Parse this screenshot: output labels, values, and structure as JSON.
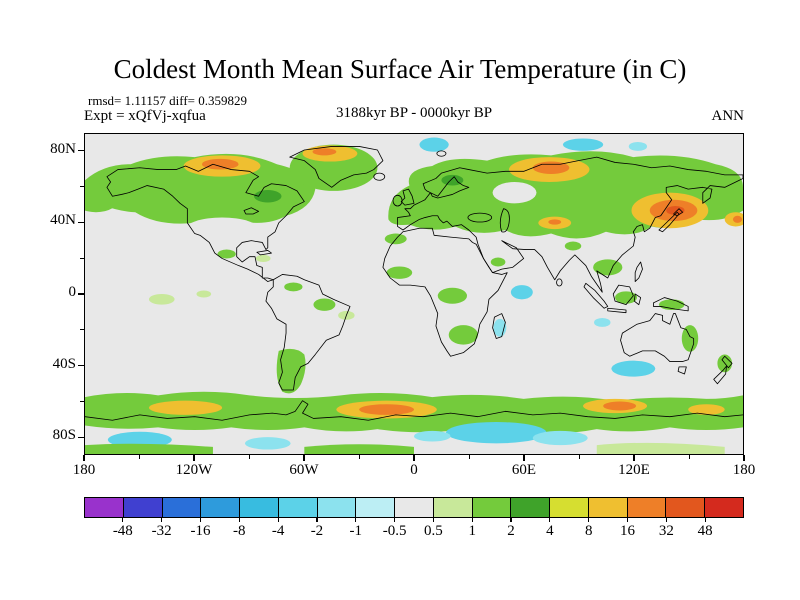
{
  "title": "Coldest Month Mean Surface Air Temperature (in C)",
  "header": {
    "rmsd": "rmsd= 1.11157 diff= 0.359829",
    "expt": "Expt = xQfVj-xqfua",
    "period": "3188kyr BP - 0000kyr BP",
    "season": "ANN"
  },
  "chart_data": {
    "type": "heatmap",
    "title": "Coldest Month Mean Surface Air Temperature (in C)",
    "units": "degrees C",
    "stats": {
      "rmsd": 1.11157,
      "diff": 0.359829
    },
    "experiment": "xQfVj-xqfua",
    "period": "3188kyr BP - 0000kyr BP",
    "season": "ANN",
    "projection": "equirectangular world map, lon -180..180, lat -90..90",
    "x_axis": {
      "ticks": [
        {
          "label": "180",
          "deg": -180
        },
        {
          "label": "120W",
          "deg": -120
        },
        {
          "label": "60W",
          "deg": -60
        },
        {
          "label": "0",
          "deg": 0
        },
        {
          "label": "60E",
          "deg": 60
        },
        {
          "label": "120E",
          "deg": 120
        },
        {
          "label": "180",
          "deg": 180
        }
      ]
    },
    "y_axis": {
      "ticks": [
        {
          "label": "80N",
          "deg": 80
        },
        {
          "label": "40N",
          "deg": 40
        },
        {
          "label": "0",
          "deg": 0
        },
        {
          "label": "40S",
          "deg": -40
        },
        {
          "label": "80S",
          "deg": -80
        }
      ]
    },
    "colorbar": {
      "levels": [
        -48,
        -32,
        -16,
        -8,
        -4,
        -2,
        -1,
        -0.5,
        0.5,
        1,
        2,
        4,
        8,
        16,
        32,
        48
      ],
      "boundary_labels": [
        "-48",
        "-32",
        "-16",
        "-8",
        "-4",
        "-2",
        "-1",
        "-0.5",
        "0.5",
        "1",
        "2",
        "4",
        "8",
        "16",
        "32",
        "48"
      ],
      "colors": [
        "#9932CC",
        "#4040D0",
        "#2A6FD9",
        "#2E9BDC",
        "#38BCE0",
        "#5CD2E8",
        "#8CE2EE",
        "#BCEEF4",
        "#E8E8E8",
        "#C8E89A",
        "#74CB3C",
        "#3FA32A",
        "#D6DE30",
        "#EFBF30",
        "#EE7F28",
        "#E2571E",
        "#D42A1E"
      ]
    },
    "field_summary": "Anomaly field: near zero (grey) over most oceans and tropics; +1 to +4 C (green) over northern continents, Greenland, Europe and the Southern Ocean margin; +8 to +32 C (yellow/orange) cores over Arctic Canada, north Greenland, central Siberia, northeast Asia and parts of coastal Antarctica; scattered -1 to -4 C (cyan) patches in the high Arctic, tropical Indian Ocean, south of Australia and near the Antarctic coast"
  }
}
